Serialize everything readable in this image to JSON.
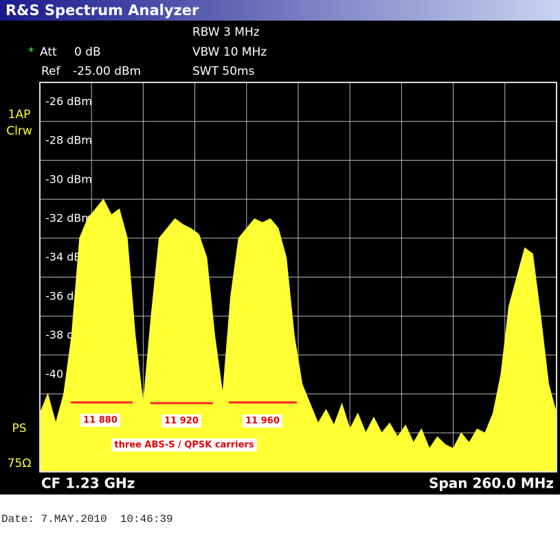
{
  "header": {
    "title": "R&S Spectrum Analyzer",
    "rbw": "RBW 3 MHz",
    "vbw": "VBW 10 MHz",
    "swt": "SWT 50ms",
    "att_marker": "*",
    "att_label": "Att",
    "att_value": "0 dB",
    "ref_label": "Ref",
    "ref_value": "-25.00 dBm"
  },
  "side": {
    "trace_mode": "1AP",
    "detector": "Clrw",
    "ps": "PS",
    "impedance": "75Ω"
  },
  "footer": {
    "center": "CF 1.23 GHz",
    "span": "Span 260.0 MHz",
    "date": "Date: 7.MAY.2010  10:46:39"
  },
  "chart_data": {
    "type": "area",
    "color": "#ffff33",
    "grid": true,
    "xlim": [
      1100,
      1360
    ],
    "ylim": [
      -45,
      -25
    ],
    "yticks": [
      {
        "value": -26,
        "label": "-26 dBm"
      },
      {
        "value": -28,
        "label": "-28 dBm"
      },
      {
        "value": -30,
        "label": "-30 dBm"
      },
      {
        "value": -32,
        "label": "-32 dBm"
      },
      {
        "value": -34,
        "label": "-34 dBm"
      },
      {
        "value": -36,
        "label": "-36 dBm"
      },
      {
        "value": -38,
        "label": "-38 dBm"
      },
      {
        "value": -40,
        "label": "-40 dBm"
      }
    ],
    "x": [
      1100,
      1104,
      1108,
      1112,
      1116,
      1120,
      1124,
      1128,
      1132,
      1136,
      1140,
      1144,
      1148,
      1152,
      1156,
      1160,
      1164,
      1168,
      1172,
      1176,
      1180,
      1184,
      1188,
      1192,
      1196,
      1200,
      1204,
      1208,
      1212,
      1216,
      1220,
      1224,
      1228,
      1232,
      1236,
      1240,
      1244,
      1248,
      1252,
      1256,
      1260,
      1264,
      1268,
      1272,
      1276,
      1280,
      1284,
      1288,
      1292,
      1296,
      1300,
      1304,
      1308,
      1312,
      1316,
      1320,
      1324,
      1328,
      1332,
      1336,
      1340,
      1344,
      1348,
      1352,
      1356,
      1360
    ],
    "values": [
      -42,
      -41,
      -42.5,
      -41,
      -38,
      -33,
      -32,
      -31.5,
      -31,
      -31.8,
      -31.5,
      -33,
      -38,
      -41.5,
      -37,
      -33,
      -32.5,
      -32,
      -32.3,
      -32.5,
      -32.8,
      -34,
      -38,
      -41,
      -36,
      -33,
      -32.5,
      -32,
      -32.2,
      -32,
      -32.5,
      -34,
      -38,
      -40.5,
      -41.5,
      -42.5,
      -41.8,
      -42.6,
      -41.5,
      -42.8,
      -42,
      -43,
      -42.2,
      -43,
      -42.5,
      -43.2,
      -42.6,
      -43.5,
      -42.8,
      -43.8,
      -43.2,
      -43.6,
      -43.8,
      -43,
      -43.5,
      -42.8,
      -43,
      -42,
      -40,
      -36.5,
      -35,
      -33.5,
      -33.8,
      -37,
      -40.5,
      -42
    ],
    "annotations": [
      "11 880",
      "11 920",
      "11 960",
      "three ABS-S / QPSK carriers"
    ]
  }
}
